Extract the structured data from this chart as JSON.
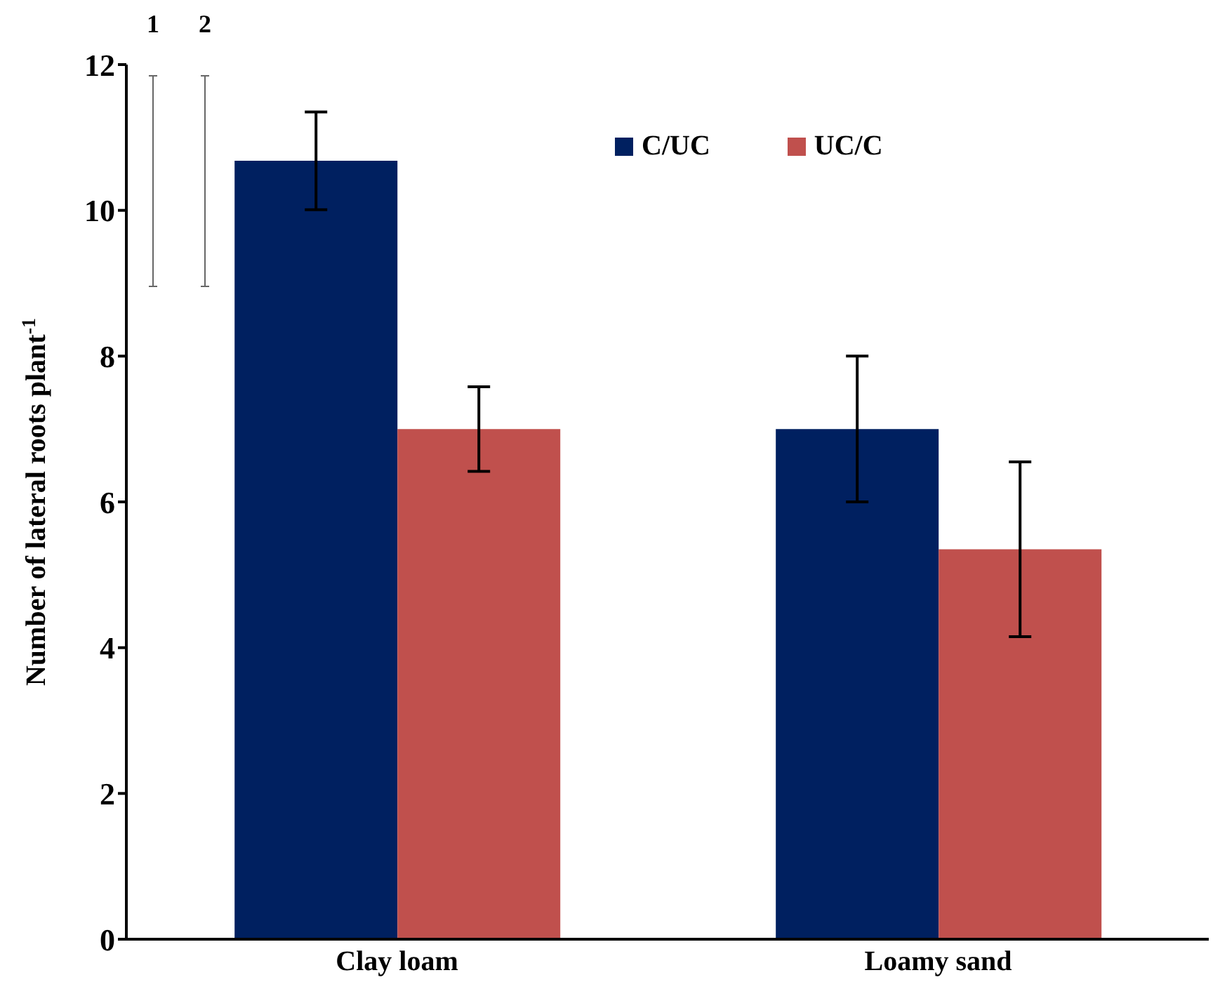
{
  "chart_data": {
    "type": "bar",
    "categories": [
      "Clay loam",
      "Loamy sand"
    ],
    "ylabel": "Number of lateral roots plant$^{-1}$",
    "ylim": [
      0,
      12
    ],
    "yticks": [
      0,
      2,
      4,
      6,
      8,
      10,
      12
    ],
    "grid": false,
    "legend": "top right",
    "annotations": [
      "1",
      "2"
    ],
    "series": [
      {
        "name": "C/UC",
        "color": "#002060",
        "values": [
          10.68,
          7.0
        ],
        "errors": [
          0.67,
          1.0
        ]
      },
      {
        "name": "UC/C",
        "color": "#c0504d",
        "values": [
          7.0,
          5.35
        ],
        "errors": [
          0.58,
          1.2
        ]
      }
    ]
  }
}
